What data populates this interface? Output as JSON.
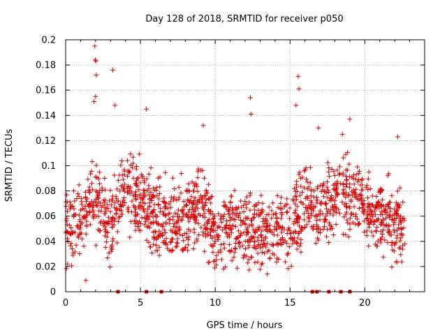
{
  "chart_data": {
    "type": "scatter",
    "title": "Day 128 of 2018, SRMTID for receiver p050",
    "xlabel": "GPS time / hours",
    "ylabel": "SRMTID / TECUs",
    "xlim": [
      0,
      24
    ],
    "ylim": [
      0,
      0.2
    ],
    "xticks": [
      "0",
      "5",
      "10",
      "15",
      "20"
    ],
    "xtick_values": [
      0,
      5,
      10,
      15,
      20
    ],
    "yticks": [
      "0",
      "0.02",
      "0.04",
      "0.06",
      "0.08",
      "0.1",
      "0.12",
      "0.14",
      "0.16",
      "0.18",
      "0.2"
    ],
    "ytick_values": [
      0,
      0.02,
      0.04,
      0.06,
      0.08,
      0.1,
      0.12,
      0.14,
      0.16,
      0.18,
      0.2
    ],
    "grid": true,
    "marker": "+",
    "color": "#dd0000",
    "outliers": [
      {
        "x": 1.95,
        "y": 0.195
      },
      {
        "x": 1.98,
        "y": 0.184
      },
      {
        "x": 2.02,
        "y": 0.183
      },
      {
        "x": 2.05,
        "y": 0.172
      },
      {
        "x": 3.15,
        "y": 0.176
      },
      {
        "x": 5.4,
        "y": 0.145
      },
      {
        "x": 12.35,
        "y": 0.154
      },
      {
        "x": 15.55,
        "y": 0.171
      },
      {
        "x": 15.6,
        "y": 0.161
      },
      {
        "x": 2.0,
        "y": 0.155
      },
      {
        "x": 1.9,
        "y": 0.151
      },
      {
        "x": 3.3,
        "y": 0.148
      },
      {
        "x": 15.4,
        "y": 0.148
      },
      {
        "x": 12.4,
        "y": 0.141
      },
      {
        "x": 1.35,
        "y": 0.009
      },
      {
        "x": 9.2,
        "y": 0.132
      },
      {
        "x": 19.0,
        "y": 0.137
      },
      {
        "x": 16.9,
        "y": 0.13
      },
      {
        "x": 18.5,
        "y": 0.125
      },
      {
        "x": 22.2,
        "y": 0.123
      }
    ],
    "zero_markers_x": [
      3.5,
      5.4,
      6.4,
      16.5,
      16.8,
      17.6,
      18.4,
      19.0
    ],
    "activity_profile": [
      {
        "x": 0,
        "y": 0.05
      },
      {
        "x": 1,
        "y": 0.055
      },
      {
        "x": 2,
        "y": 0.075
      },
      {
        "x": 3,
        "y": 0.05
      },
      {
        "x": 4,
        "y": 0.085
      },
      {
        "x": 5,
        "y": 0.07
      },
      {
        "x": 6,
        "y": 0.06
      },
      {
        "x": 7,
        "y": 0.055
      },
      {
        "x": 8,
        "y": 0.06
      },
      {
        "x": 9,
        "y": 0.075
      },
      {
        "x": 10,
        "y": 0.045
      },
      {
        "x": 11,
        "y": 0.055
      },
      {
        "x": 12,
        "y": 0.05
      },
      {
        "x": 13,
        "y": 0.045
      },
      {
        "x": 14,
        "y": 0.05
      },
      {
        "x": 15,
        "y": 0.05
      },
      {
        "x": 16,
        "y": 0.075
      },
      {
        "x": 17,
        "y": 0.065
      },
      {
        "x": 18,
        "y": 0.075
      },
      {
        "x": 19,
        "y": 0.08
      },
      {
        "x": 20,
        "y": 0.07
      },
      {
        "x": 21,
        "y": 0.06
      },
      {
        "x": 22,
        "y": 0.055
      },
      {
        "x": 22.7,
        "y": 0.05
      }
    ]
  }
}
